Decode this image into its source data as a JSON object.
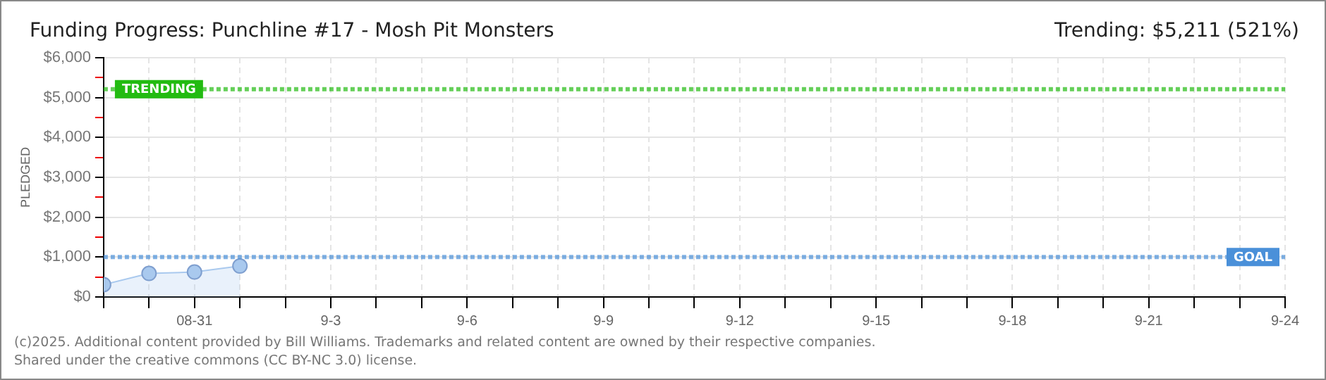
{
  "chart_data": {
    "type": "area",
    "title": "Funding Progress: Punchline #17 - Mosh Pit Monsters",
    "subtitle": "Trending: $5,211 (521%)",
    "ylabel": "PLEDGED",
    "x": [
      "--08-29",
      "--08-30",
      "--08-31",
      "--09-01"
    ],
    "series": [
      {
        "color": "#a9c9ee",
        "values": [
          310,
          590,
          625,
          775
        ]
      }
    ],
    "marker": "circle",
    "grid": true,
    "legend": false,
    "xlim": [
      "--08-29",
      "--09-24"
    ],
    "xticks": [
      {
        "value": "--08-29",
        "label": null
      },
      {
        "value": "--08-30",
        "label": null
      },
      {
        "value": "--08-31",
        "label": "08-31"
      },
      {
        "value": "--09-01",
        "label": null
      },
      {
        "value": "--09-02",
        "label": null
      },
      {
        "value": "--09-03",
        "label": "9-3"
      },
      {
        "value": "--09-04",
        "label": null
      },
      {
        "value": "--09-05",
        "label": null
      },
      {
        "value": "--09-06",
        "label": "9-6"
      },
      {
        "value": "--09-07",
        "label": null
      },
      {
        "value": "--09-08",
        "label": null
      },
      {
        "value": "--09-09",
        "label": "9-9"
      },
      {
        "value": "--09-10",
        "label": null
      },
      {
        "value": "--09-11",
        "label": null
      },
      {
        "value": "--09-12",
        "label": "9-12"
      },
      {
        "value": "--09-13",
        "label": null
      },
      {
        "value": "--09-14",
        "label": null
      },
      {
        "value": "--09-15",
        "label": "9-15"
      },
      {
        "value": "--09-16",
        "label": null
      },
      {
        "value": "--09-17",
        "label": null
      },
      {
        "value": "--09-18",
        "label": "9-18"
      },
      {
        "value": "--09-19",
        "label": null
      },
      {
        "value": "--09-20",
        "label": null
      },
      {
        "value": "--09-21",
        "label": "9-21"
      },
      {
        "value": "--09-22",
        "label": null
      },
      {
        "value": "--09-23",
        "label": null
      },
      {
        "value": "--09-24",
        "label": "9-24"
      }
    ],
    "ylim": [
      0,
      6000
    ],
    "yticks": [
      {
        "value": 0,
        "label": "$0"
      },
      {
        "value": 500,
        "label": null
      },
      {
        "value": 1000,
        "label": "$1,000"
      },
      {
        "value": 1500,
        "label": null
      },
      {
        "value": 2000,
        "label": "$2,000"
      },
      {
        "value": 2500,
        "label": null
      },
      {
        "value": 3000,
        "label": "$3,000"
      },
      {
        "value": 3500,
        "label": null
      },
      {
        "value": 4000,
        "label": "$4,000"
      },
      {
        "value": 4500,
        "label": null
      },
      {
        "value": 5000,
        "label": "$5,000"
      },
      {
        "value": 5500,
        "label": null
      },
      {
        "value": 6000,
        "label": "$6,000"
      }
    ],
    "ref_lines": [
      {
        "axis": "y",
        "value": 5211,
        "label": "TRENDING",
        "color": "#22bb11",
        "line_style": "dotted"
      },
      {
        "axis": "y",
        "value": 1000,
        "label": "GOAL",
        "color": "#4a90d9",
        "line_style": "dotted"
      }
    ],
    "annotations": [
      "(c)2025. Additional content provided by Bill Williams. Trademarks and related content are owned by their respective companies.",
      "Shared under the creative commons (CC BY-NC 3.0) license."
    ]
  }
}
